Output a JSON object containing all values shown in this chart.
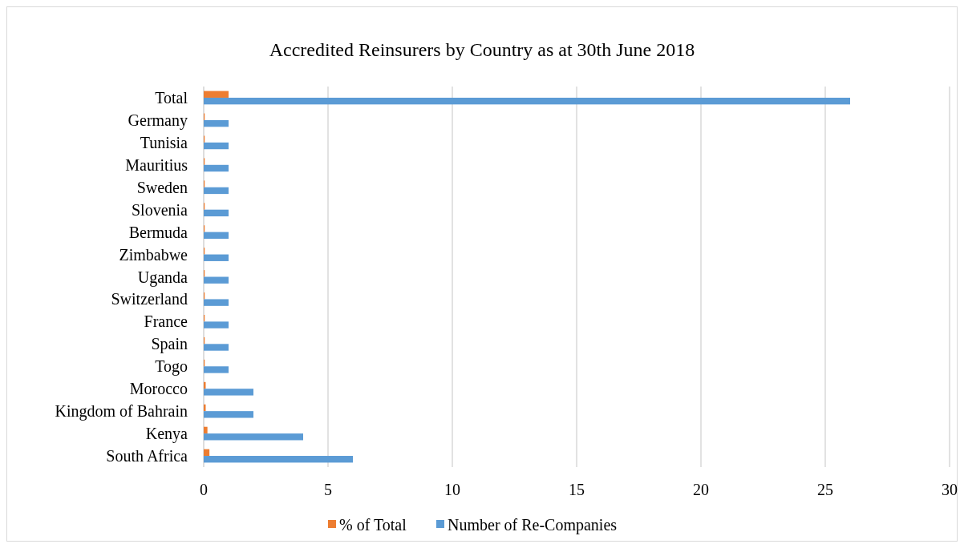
{
  "chart_data": {
    "type": "bar",
    "orientation": "horizontal",
    "title": "Accredited Reinsurers by Country as at 30th June 2018",
    "categories": [
      "Total",
      "Germany",
      "Tunisia",
      "Mauritius",
      "Sweden",
      "Slovenia",
      "Bermuda",
      "Zimbabwe",
      "Uganda",
      "Switzerland",
      "France",
      "Spain",
      "Togo",
      "Morocco",
      "Kingdom of Bahrain",
      "Kenya",
      "South Africa"
    ],
    "series": [
      {
        "name": "% of Total",
        "color": "#ed7d31",
        "values": [
          1,
          0.04,
          0.04,
          0.04,
          0.04,
          0.04,
          0.04,
          0.04,
          0.04,
          0.04,
          0.04,
          0.04,
          0.04,
          0.08,
          0.08,
          0.15,
          0.23
        ]
      },
      {
        "name": "Number of Re-Companies",
        "color": "#5b9bd5",
        "values": [
          26,
          1,
          1,
          1,
          1,
          1,
          1,
          1,
          1,
          1,
          1,
          1,
          1,
          2,
          2,
          4,
          6
        ]
      }
    ],
    "xlim": [
      0,
      30
    ],
    "xticks": [
      0,
      5,
      10,
      15,
      20,
      25,
      30
    ],
    "grid": "x",
    "legend": "bottom"
  }
}
